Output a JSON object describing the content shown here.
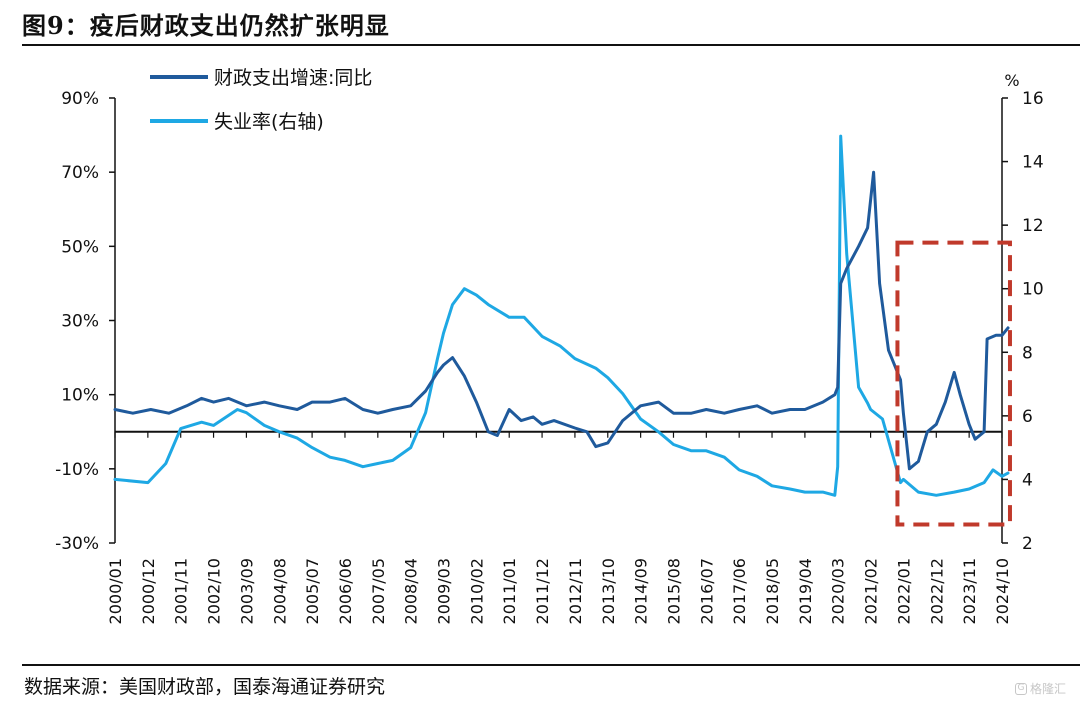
{
  "figure": {
    "title": "图9：疫后财政支出仍然扩张明显",
    "source": "数据来源：美国财政部，国泰海通证券研究",
    "watermark": "格隆汇"
  },
  "chart_data": {
    "type": "line",
    "legend_placement": "top-left",
    "grid": false,
    "left_axis": {
      "unit": "%",
      "ylim": [
        -30,
        90
      ],
      "ticks": [
        "90%",
        "70%",
        "50%",
        "30%",
        "10%",
        "-10%",
        "-30%"
      ],
      "tick_values": [
        90,
        70,
        50,
        30,
        10,
        -10,
        -30
      ]
    },
    "right_axis": {
      "label": "%",
      "ylim": [
        2,
        16
      ],
      "ticks": [
        "16",
        "14",
        "12",
        "10",
        "8",
        "6",
        "4",
        "2"
      ],
      "tick_values": [
        16,
        14,
        12,
        10,
        8,
        6,
        4,
        2
      ]
    },
    "x_ticks": [
      "2000/01",
      "2000/12",
      "2001/11",
      "2002/10",
      "2003/09",
      "2004/08",
      "2005/07",
      "2006/06",
      "2007/05",
      "2008/04",
      "2009/03",
      "2010/02",
      "2011/01",
      "2011/12",
      "2012/11",
      "2013/10",
      "2014/09",
      "2015/08",
      "2016/07",
      "2017/06",
      "2018/05",
      "2019/04",
      "2020/03",
      "2021/02",
      "2022/01",
      "2022/12",
      "2023/11",
      "2024/10"
    ],
    "series": [
      {
        "name": "财政支出增速:同比",
        "axis": "left",
        "color": "#1f5a9c",
        "points": [
          [
            "2000/01",
            6
          ],
          [
            "2000/07",
            5
          ],
          [
            "2001/01",
            6
          ],
          [
            "2001/07",
            5
          ],
          [
            "2002/01",
            7
          ],
          [
            "2002/06",
            9
          ],
          [
            "2002/10",
            8
          ],
          [
            "2003/03",
            9
          ],
          [
            "2003/09",
            7
          ],
          [
            "2004/03",
            8
          ],
          [
            "2004/08",
            7
          ],
          [
            "2005/02",
            6
          ],
          [
            "2005/07",
            8
          ],
          [
            "2006/01",
            8
          ],
          [
            "2006/06",
            9
          ],
          [
            "2006/12",
            6
          ],
          [
            "2007/05",
            5
          ],
          [
            "2007/10",
            6
          ],
          [
            "2008/04",
            7
          ],
          [
            "2008/09",
            11
          ],
          [
            "2009/01",
            16
          ],
          [
            "2009/03",
            18
          ],
          [
            "2009/06",
            20
          ],
          [
            "2009/10",
            15
          ],
          [
            "2010/02",
            8
          ],
          [
            "2010/06",
            0
          ],
          [
            "2010/09",
            -1
          ],
          [
            "2011/01",
            6
          ],
          [
            "2011/05",
            3
          ],
          [
            "2011/09",
            4
          ],
          [
            "2011/12",
            2
          ],
          [
            "2012/04",
            3
          ],
          [
            "2012/11",
            1
          ],
          [
            "2013/03",
            0
          ],
          [
            "2013/06",
            -4
          ],
          [
            "2013/10",
            -3
          ],
          [
            "2014/03",
            3
          ],
          [
            "2014/09",
            7
          ],
          [
            "2015/03",
            8
          ],
          [
            "2015/08",
            5
          ],
          [
            "2016/02",
            5
          ],
          [
            "2016/07",
            6
          ],
          [
            "2017/01",
            5
          ],
          [
            "2017/06",
            6
          ],
          [
            "2017/12",
            7
          ],
          [
            "2018/05",
            5
          ],
          [
            "2018/11",
            6
          ],
          [
            "2019/04",
            6
          ],
          [
            "2019/10",
            8
          ],
          [
            "2020/02",
            10
          ],
          [
            "2020/03",
            12
          ],
          [
            "2020/04",
            40
          ],
          [
            "2020/06",
            44
          ],
          [
            "2020/10",
            50
          ],
          [
            "2021/01",
            55
          ],
          [
            "2021/03",
            70
          ],
          [
            "2021/05",
            40
          ],
          [
            "2021/08",
            22
          ],
          [
            "2021/12",
            14
          ],
          [
            "2022/01",
            5
          ],
          [
            "2022/03",
            -10
          ],
          [
            "2022/06",
            -8
          ],
          [
            "2022/09",
            0
          ],
          [
            "2022/12",
            2
          ],
          [
            "2023/03",
            8
          ],
          [
            "2023/06",
            16
          ],
          [
            "2023/08",
            10
          ],
          [
            "2023/11",
            2
          ],
          [
            "2024/01",
            -2
          ],
          [
            "2024/04",
            0
          ],
          [
            "2024/05",
            25
          ],
          [
            "2024/08",
            26
          ],
          [
            "2024/10",
            26
          ],
          [
            "2024/12",
            28
          ]
        ]
      },
      {
        "name": "失业率(右轴)",
        "axis": "right",
        "color": "#1ea8e4",
        "points": [
          [
            "2000/01",
            4.0
          ],
          [
            "2000/12",
            3.9
          ],
          [
            "2001/06",
            4.5
          ],
          [
            "2001/11",
            5.6
          ],
          [
            "2002/06",
            5.8
          ],
          [
            "2002/10",
            5.7
          ],
          [
            "2003/06",
            6.2
          ],
          [
            "2003/09",
            6.1
          ],
          [
            "2004/03",
            5.7
          ],
          [
            "2004/08",
            5.5
          ],
          [
            "2005/02",
            5.3
          ],
          [
            "2005/07",
            5.0
          ],
          [
            "2006/01",
            4.7
          ],
          [
            "2006/06",
            4.6
          ],
          [
            "2006/12",
            4.4
          ],
          [
            "2007/05",
            4.5
          ],
          [
            "2007/10",
            4.6
          ],
          [
            "2008/04",
            5.0
          ],
          [
            "2008/09",
            6.1
          ],
          [
            "2009/01",
            7.8
          ],
          [
            "2009/03",
            8.6
          ],
          [
            "2009/06",
            9.5
          ],
          [
            "2009/10",
            10.0
          ],
          [
            "2010/02",
            9.8
          ],
          [
            "2010/06",
            9.5
          ],
          [
            "2011/01",
            9.1
          ],
          [
            "2011/06",
            9.1
          ],
          [
            "2011/12",
            8.5
          ],
          [
            "2012/06",
            8.2
          ],
          [
            "2012/11",
            7.8
          ],
          [
            "2013/06",
            7.5
          ],
          [
            "2013/10",
            7.2
          ],
          [
            "2014/03",
            6.7
          ],
          [
            "2014/09",
            5.9
          ],
          [
            "2015/03",
            5.5
          ],
          [
            "2015/08",
            5.1
          ],
          [
            "2016/02",
            4.9
          ],
          [
            "2016/07",
            4.9
          ],
          [
            "2017/01",
            4.7
          ],
          [
            "2017/06",
            4.3
          ],
          [
            "2017/12",
            4.1
          ],
          [
            "2018/05",
            3.8
          ],
          [
            "2018/11",
            3.7
          ],
          [
            "2019/04",
            3.6
          ],
          [
            "2019/10",
            3.6
          ],
          [
            "2020/02",
            3.5
          ],
          [
            "2020/03",
            4.4
          ],
          [
            "2020/04",
            14.8
          ],
          [
            "2020/06",
            11.1
          ],
          [
            "2020/10",
            6.9
          ],
          [
            "2021/01",
            6.4
          ],
          [
            "2021/02",
            6.2
          ],
          [
            "2021/06",
            5.9
          ],
          [
            "2021/12",
            3.9
          ],
          [
            "2022/01",
            4.0
          ],
          [
            "2022/06",
            3.6
          ],
          [
            "2022/12",
            3.5
          ],
          [
            "2023/06",
            3.6
          ],
          [
            "2023/11",
            3.7
          ],
          [
            "2024/04",
            3.9
          ],
          [
            "2024/07",
            4.3
          ],
          [
            "2024/10",
            4.1
          ],
          [
            "2024/12",
            4.2
          ]
        ]
      }
    ],
    "annotation": {
      "shape": "dashed-rectangle",
      "color": "#c0392b",
      "x_from": "2022/01",
      "x_to": "2024/12",
      "y_from": -25,
      "y_to": 51
    }
  }
}
